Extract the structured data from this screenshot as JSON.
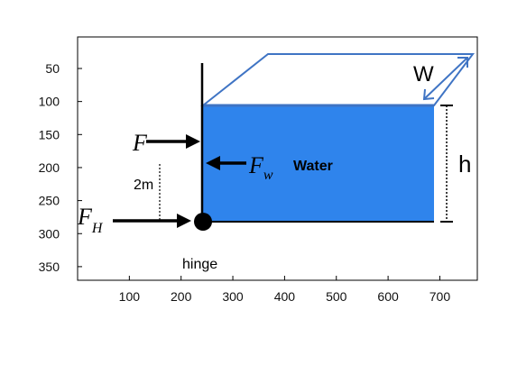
{
  "axes": {
    "x_ticks": [
      "100",
      "200",
      "300",
      "400",
      "500",
      "600",
      "700"
    ],
    "y_ticks": [
      "50",
      "100",
      "150",
      "200",
      "250",
      "300",
      "350"
    ]
  },
  "labels": {
    "width": "W",
    "height": "h",
    "force_F": "F",
    "force_Fw_main": "F",
    "force_Fw_sub": "w",
    "force_FH_main": "F",
    "force_FH_sub": "H",
    "water": "Water",
    "distance": "2m",
    "hinge": "hinge"
  },
  "colors": {
    "water_fill": "#2f84ec",
    "tank_outline": "#3f74c4",
    "ink": "#000000"
  }
}
